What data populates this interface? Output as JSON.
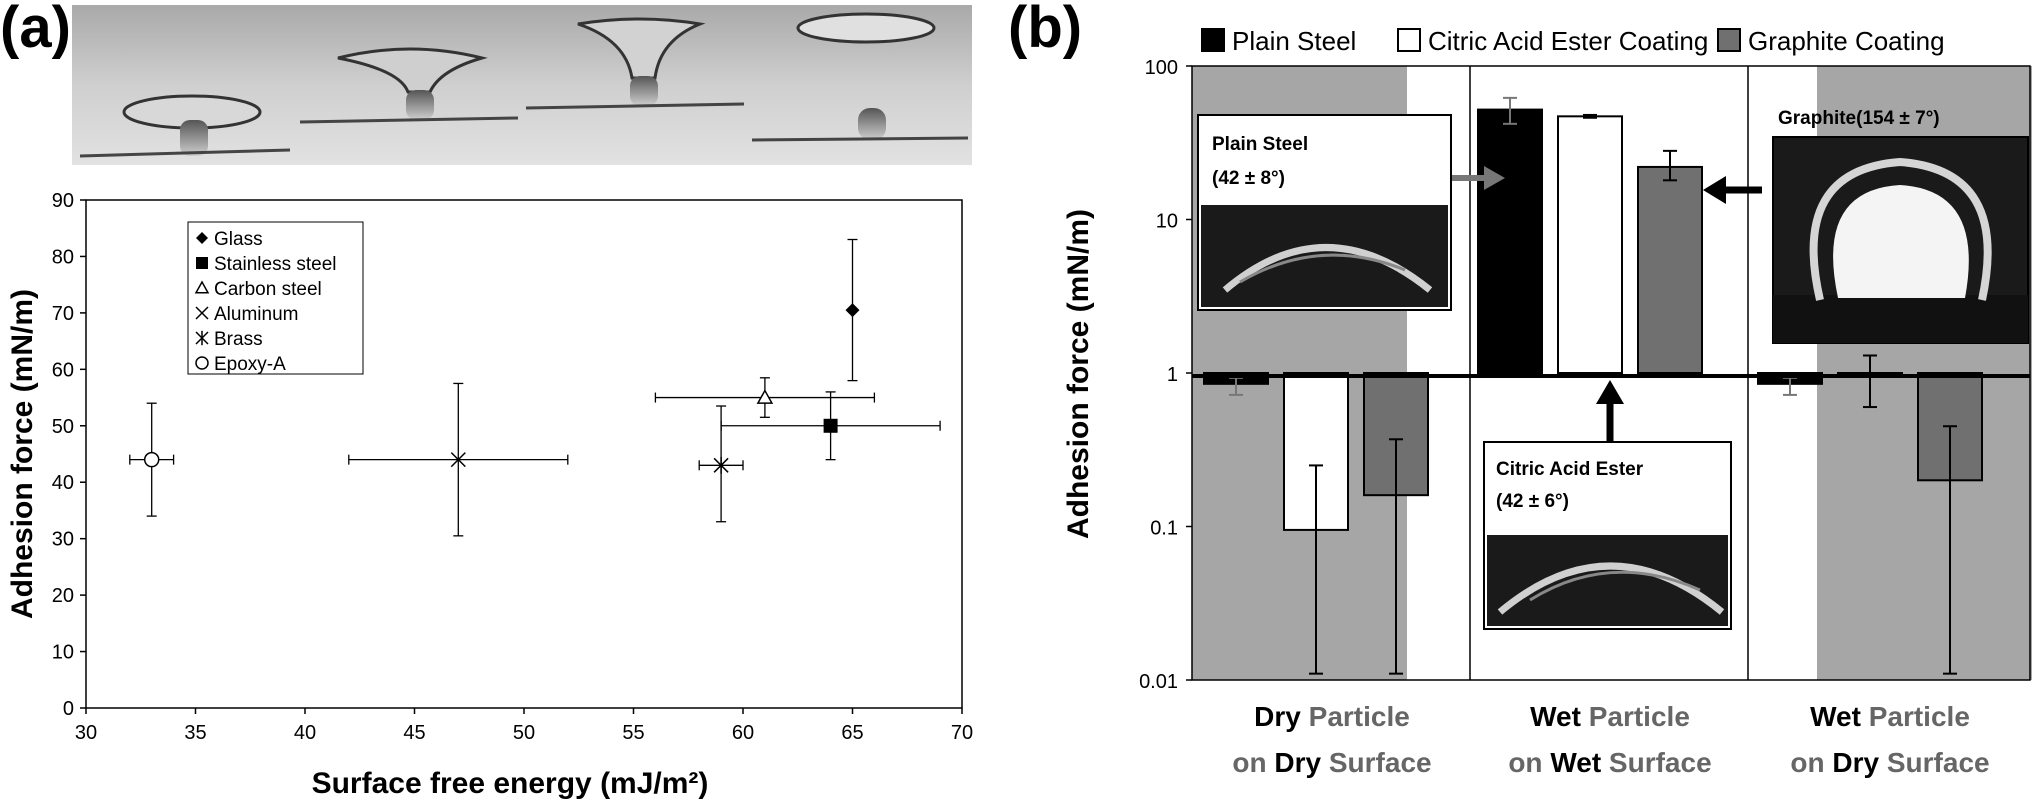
{
  "panel_a_label": "(a)",
  "panel_b_label": "(b)",
  "chart_data": [
    {
      "type": "scatter",
      "xlabel": "Surface free energy (mJ/m²)",
      "ylabel": "Adhesion force (mN/m)",
      "xlim": [
        30,
        70
      ],
      "ylim": [
        0,
        90
      ],
      "x_ticks": [
        "30",
        "35",
        "40",
        "45",
        "50",
        "55",
        "60",
        "65",
        "70"
      ],
      "y_ticks": [
        "0",
        "10",
        "20",
        "30",
        "40",
        "50",
        "60",
        "70",
        "80",
        "90"
      ],
      "grid": false,
      "legend_position": "top-left",
      "series": [
        {
          "name": "Glass",
          "marker": "diamond",
          "x": 65,
          "y": 70.5,
          "xerr": 0,
          "yerr": [
            58,
            83
          ]
        },
        {
          "name": "Stainless steel",
          "marker": "square",
          "x": 64,
          "y": 50,
          "xerr": [
            59,
            69
          ],
          "yerr": [
            44,
            56
          ]
        },
        {
          "name": "Carbon steel",
          "marker": "triangle",
          "x": 61,
          "y": 55,
          "xerr": [
            56,
            66
          ],
          "yerr": [
            51.5,
            58.5
          ]
        },
        {
          "name": "Aluminum",
          "marker": "x",
          "x": 47,
          "y": 44,
          "xerr": [
            42,
            52
          ],
          "yerr": [
            30.5,
            57.5
          ]
        },
        {
          "name": "Brass",
          "marker": "asterisk",
          "x": 59,
          "y": 43,
          "xerr": [
            58,
            60
          ],
          "yerr": [
            33,
            53.5
          ]
        },
        {
          "name": "Epoxy-A",
          "marker": "circle",
          "x": 33,
          "y": 44,
          "xerr": [
            32,
            34
          ],
          "yerr": [
            34,
            54
          ]
        }
      ]
    },
    {
      "type": "bar",
      "ylabel": "Adhesion force (mN/m)",
      "y_scale": "log",
      "ylim": [
        0.01,
        100
      ],
      "y_ticks": [
        "0.01",
        "0.1",
        "1",
        "10",
        "100"
      ],
      "legend_position": "top",
      "categories": [
        {
          "bold1": "Dry",
          "rest1": " Particle",
          "pre2": "on ",
          "bold2": "Dry",
          "rest2": " Surface"
        },
        {
          "bold1": "Wet",
          "rest1": " Particle",
          "pre2": "on ",
          "bold2": "Wet",
          "rest2": " Surface"
        },
        {
          "bold1": "Wet",
          "rest1": " Particle",
          "pre2": "on ",
          "bold2": "Dry",
          "rest2": " Surface"
        }
      ],
      "series": [
        {
          "name": "Plain Steel",
          "color": "#000000",
          "values": [
            0.85,
            52,
            0.85
          ],
          "err_low": [
            0.72,
            42,
            0.72
          ],
          "err_high": [
            0.93,
            62,
            0.93
          ]
        },
        {
          "name": "Citric Acid Ester Coating",
          "color": "#ffffff",
          "values": [
            0.095,
            47,
            0.95
          ],
          "err_low": [
            0.011,
            46,
            0.6
          ],
          "err_high": [
            0.25,
            48,
            1.3
          ]
        },
        {
          "name": "Graphite Coating",
          "color": "#707070",
          "values": [
            0.16,
            22,
            0.2
          ],
          "err_low": [
            0.011,
            18,
            0.011
          ],
          "err_high": [
            0.37,
            28,
            0.45
          ]
        }
      ],
      "insets": [
        {
          "title": "Plain Steel",
          "subtitle": "(42 ± 8°)"
        },
        {
          "title": "Citric Acid Ester",
          "subtitle": "(42 ± 6°)"
        },
        {
          "title": "Graphite(154 ± 7°)"
        }
      ]
    }
  ]
}
